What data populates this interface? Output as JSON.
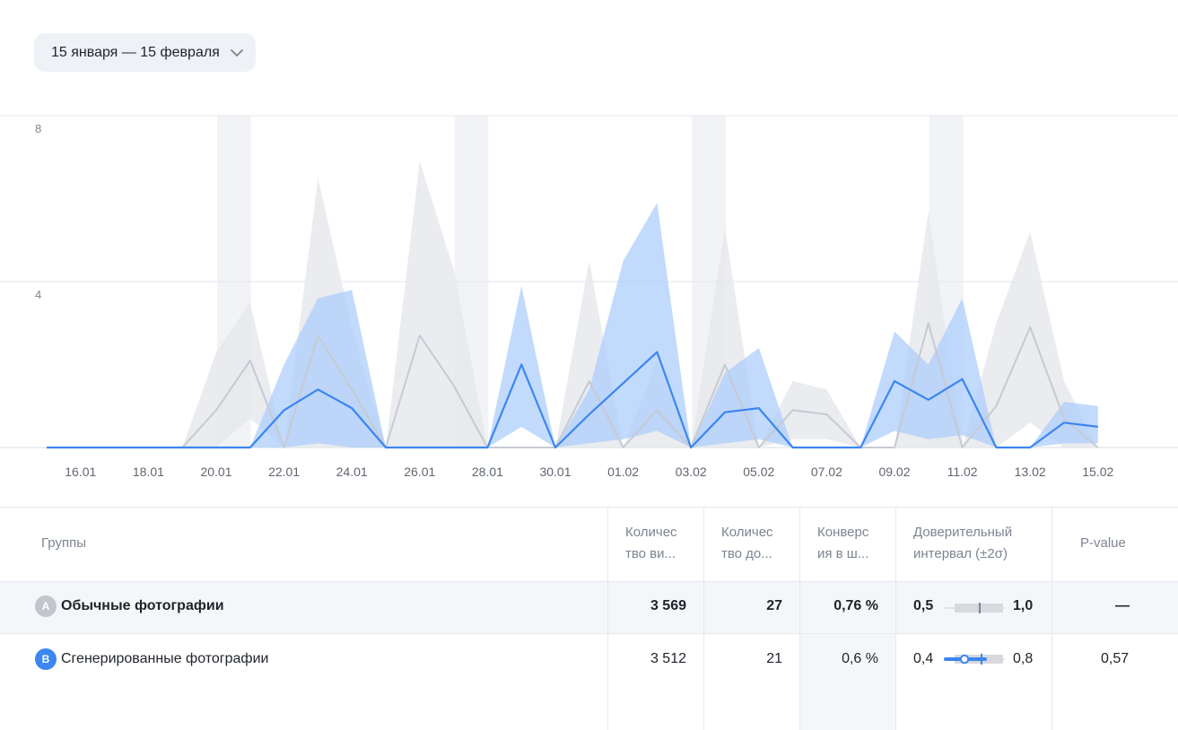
{
  "date_range": {
    "label": "15 января — 15 февраля"
  },
  "chart_data": {
    "type": "area",
    "y_ticks": [
      "8",
      "4"
    ],
    "ylim": [
      0,
      8
    ],
    "grid": "horizontal",
    "x_tick_labels": [
      "16.01",
      "18.01",
      "20.01",
      "22.01",
      "24.01",
      "26.01",
      "28.01",
      "30.01",
      "01.02",
      "03.02",
      "05.02",
      "07.02",
      "09.02",
      "11.02",
      "13.02",
      "15.02"
    ],
    "x": [
      "15.01",
      "16.01",
      "17.01",
      "18.01",
      "19.01",
      "20.01",
      "21.01",
      "22.01",
      "23.01",
      "24.01",
      "25.01",
      "26.01",
      "27.01",
      "28.01",
      "29.01",
      "30.01",
      "31.01",
      "01.02",
      "02.02",
      "03.02",
      "04.02",
      "05.02",
      "06.02",
      "07.02",
      "08.02",
      "09.02",
      "10.02",
      "11.02",
      "12.02",
      "13.02",
      "14.02",
      "15.02"
    ],
    "shaded_periods": [
      [
        "20.01",
        "21.01"
      ],
      [
        "27.01",
        "28.01"
      ],
      [
        "03.02",
        "04.02"
      ],
      [
        "10.02",
        "11.02"
      ]
    ],
    "series": [
      {
        "group": "A",
        "color": "#c6cad2",
        "band_color": "#e5e7eb",
        "values": [
          0,
          0,
          0,
          0,
          0,
          0.9,
          2.1,
          0,
          2.7,
          1.4,
          0,
          2.7,
          1.5,
          0,
          0,
          0,
          1.6,
          0,
          0.9,
          0,
          2.0,
          0,
          0.9,
          0.8,
          0,
          0,
          3.0,
          0,
          1.0,
          2.9,
          0.7,
          0
        ],
        "upper": [
          0,
          0,
          0,
          0,
          0,
          2.3,
          3.5,
          0,
          6.5,
          2.9,
          0,
          6.9,
          4.3,
          0,
          0,
          0,
          4.5,
          0,
          2.1,
          0,
          5.3,
          0,
          1.6,
          1.4,
          0,
          0,
          5.7,
          0,
          3.0,
          5.2,
          1.6,
          0
        ],
        "lower": [
          0,
          0,
          0,
          0,
          0,
          0,
          0.7,
          0,
          0,
          0,
          0,
          0,
          0,
          0,
          0,
          0,
          0,
          0,
          0,
          0,
          0,
          0,
          0.2,
          0.2,
          0,
          0,
          0,
          0,
          0,
          0.6,
          0,
          0
        ]
      },
      {
        "group": "B",
        "color": "#3b86f0",
        "band_color": "#aecdfb",
        "values": [
          0,
          0,
          0,
          0,
          0,
          0,
          0,
          0.9,
          1.4,
          0.95,
          0,
          0,
          0,
          0,
          2.0,
          0,
          0.8,
          1.55,
          2.3,
          0,
          0.85,
          0.95,
          0,
          0,
          0,
          1.6,
          1.15,
          1.65,
          0,
          0,
          0.6,
          0.5
        ],
        "upper": [
          0,
          0,
          0,
          0,
          0,
          0,
          0,
          2.0,
          3.6,
          3.8,
          0,
          0,
          0,
          0,
          3.9,
          0,
          1.4,
          4.5,
          5.9,
          0,
          1.8,
          2.4,
          0,
          0,
          0,
          2.8,
          2.0,
          3.6,
          0,
          0,
          1.1,
          1.0
        ],
        "lower": [
          0,
          0,
          0,
          0,
          0,
          0,
          0,
          0,
          0.1,
          0,
          0,
          0,
          0,
          0,
          0.5,
          0,
          0.1,
          0.2,
          0.4,
          0,
          0.1,
          0.2,
          0,
          0,
          0,
          0.4,
          0.2,
          0.3,
          0,
          0,
          0.1,
          0.1
        ]
      }
    ]
  },
  "table": {
    "headers": {
      "groups": "Группы",
      "visits": [
        "Количес",
        "тво ви..."
      ],
      "goals": [
        "Количес",
        "тво до..."
      ],
      "conversion": [
        "Конверс",
        "ия в ш..."
      ],
      "ci": [
        "Доверительный",
        "интервал (±2σ)"
      ],
      "pvalue": "P-value"
    },
    "rows": [
      {
        "badge": "A",
        "badge_color": "#c1c5cc",
        "name": "Обычные фотографии",
        "visits": "3 569",
        "goals": "27",
        "conversion": "0,76 %",
        "ci_low": "0,5",
        "ci_high": "1,0",
        "pvalue": "—"
      },
      {
        "badge": "B",
        "badge_color": "#3b86f0",
        "name": "Сгенерированные фотографии",
        "visits": "3 512",
        "goals": "21",
        "conversion": "0,6 %",
        "ci_low": "0,4",
        "ci_high": "0,8",
        "pvalue": "0,57"
      }
    ]
  }
}
